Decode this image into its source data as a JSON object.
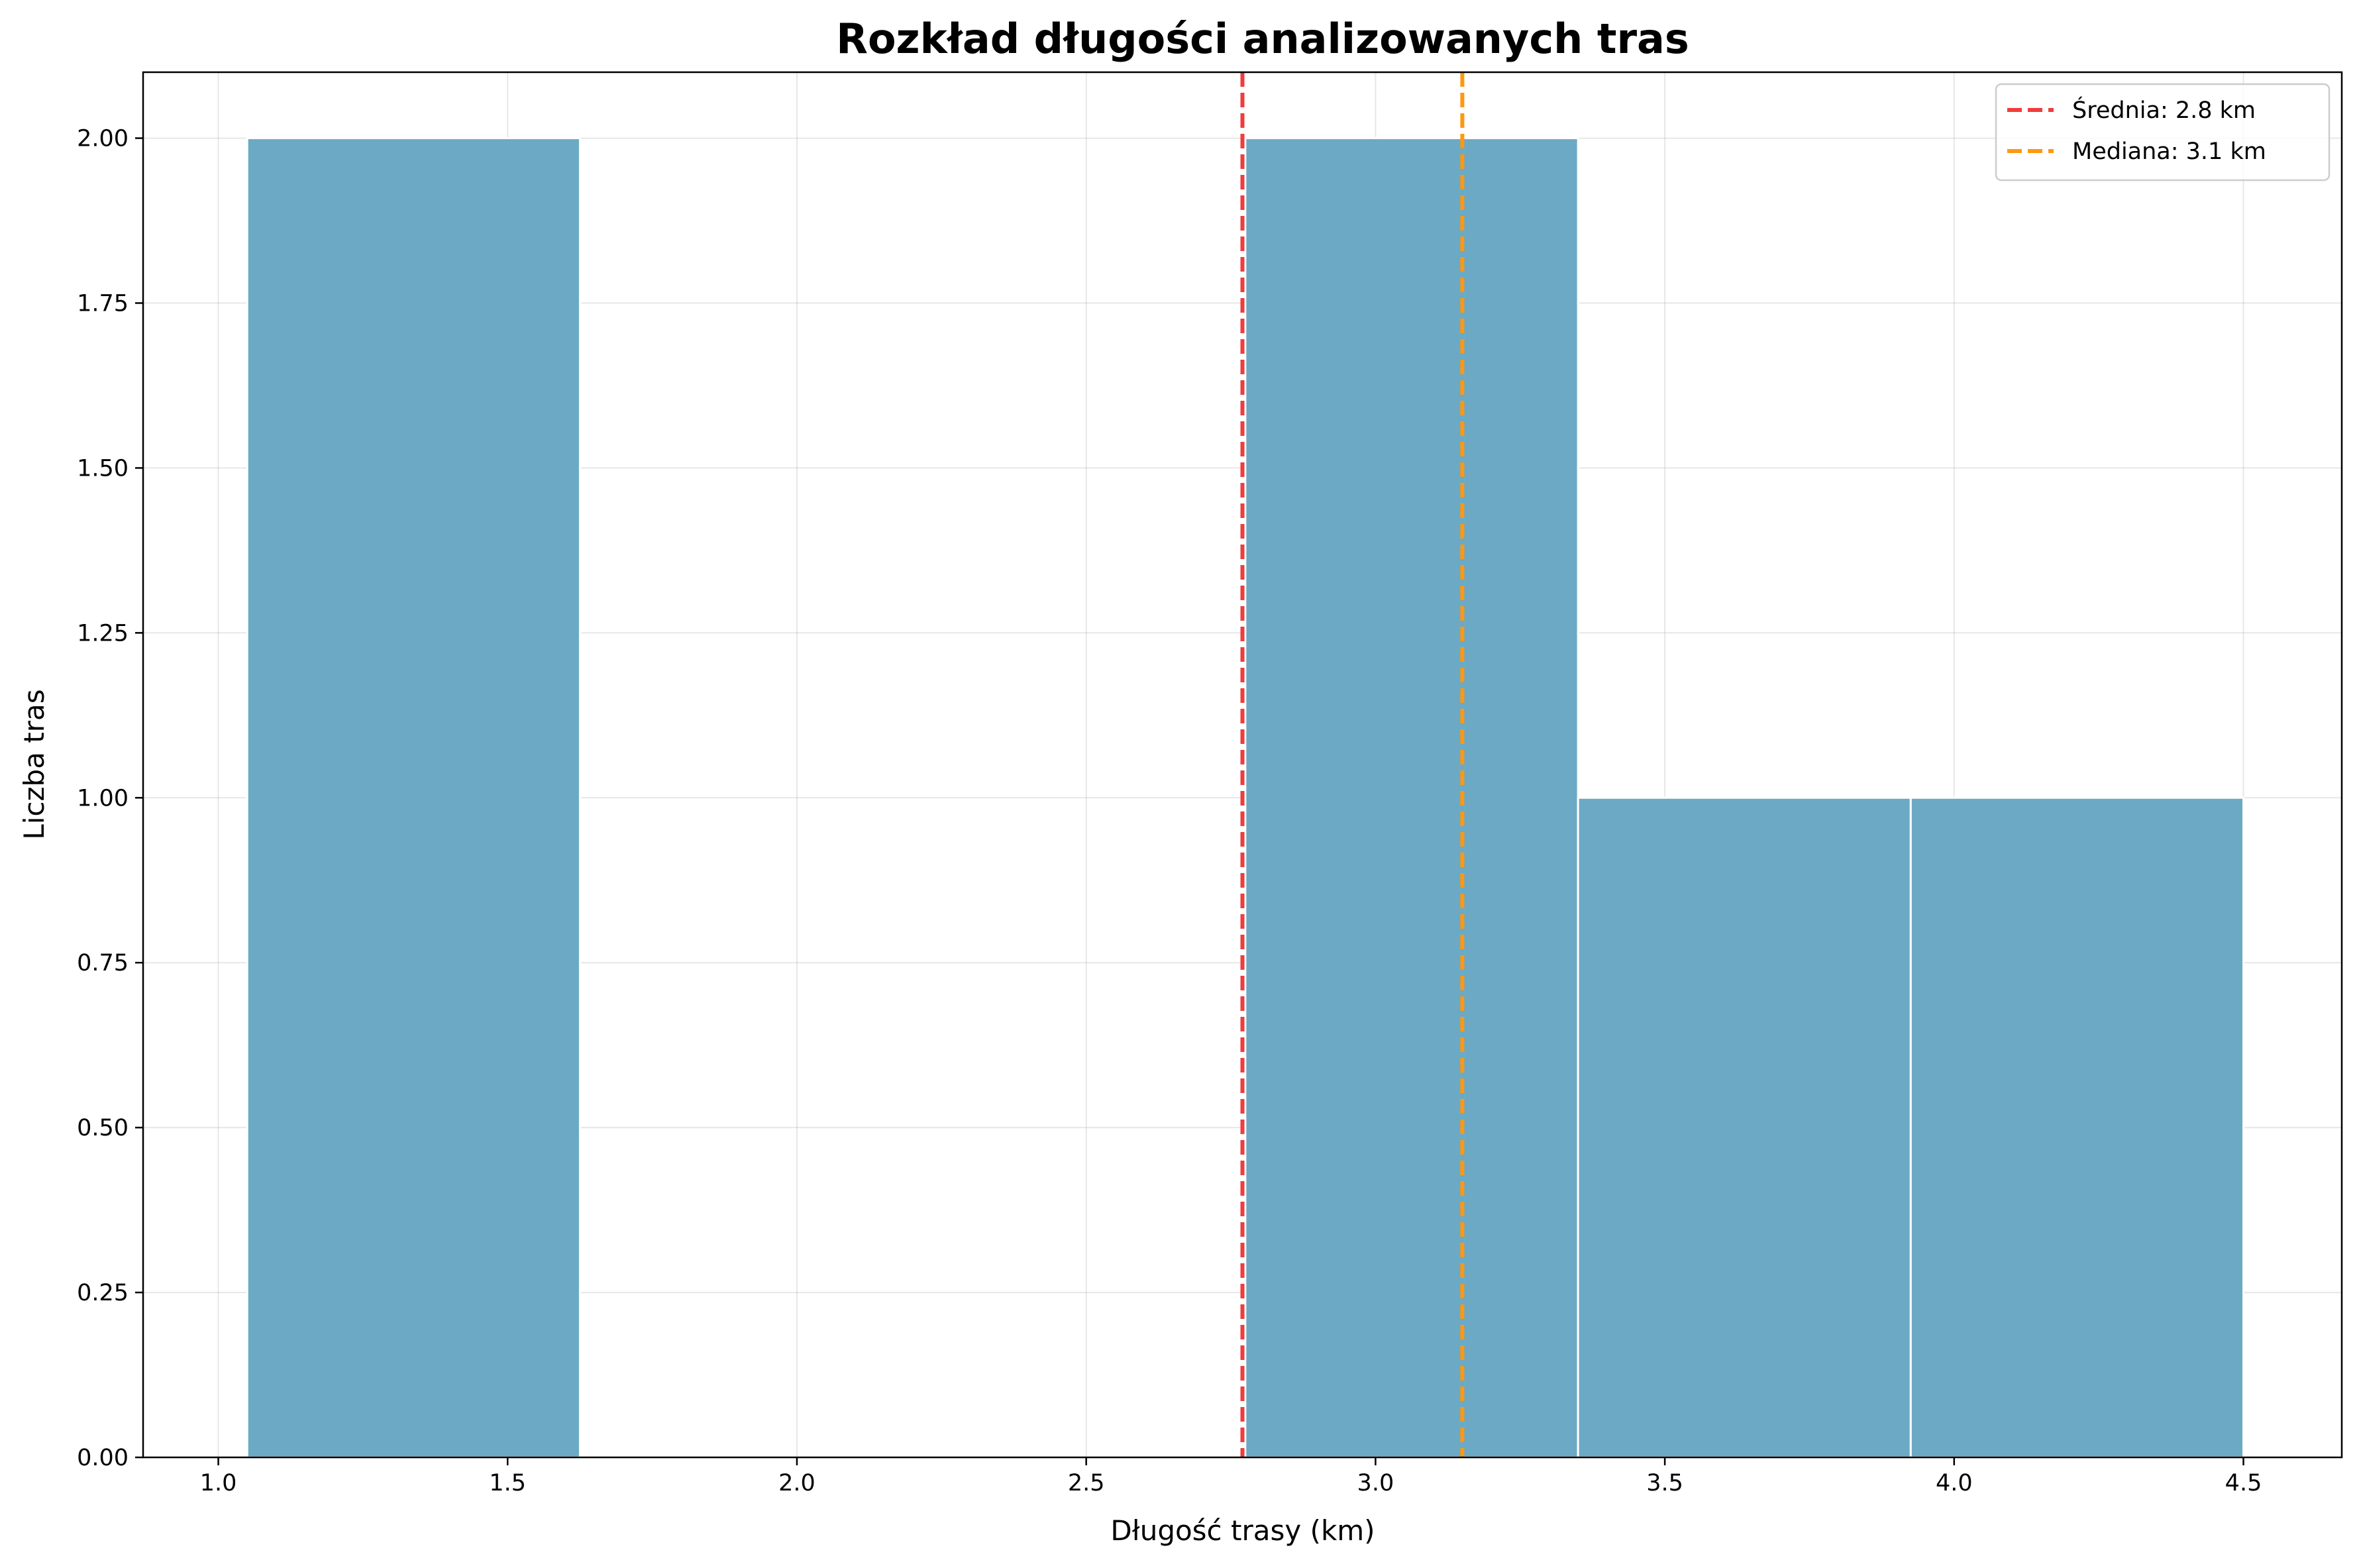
{
  "chart_data": {
    "type": "bar",
    "subtype": "histogram",
    "title": "Rozkład długości analizowanych tras",
    "xlabel": "Długość trasy (km)",
    "ylabel": "Liczba tras",
    "xlim": [
      0.87,
      4.67
    ],
    "ylim": [
      0,
      2.1
    ],
    "xticks": [
      1.0,
      1.5,
      2.0,
      2.5,
      3.0,
      3.5,
      4.0,
      4.5
    ],
    "xtick_labels": [
      "1.0",
      "1.5",
      "2.0",
      "2.5",
      "3.0",
      "3.5",
      "4.0",
      "4.5"
    ],
    "yticks": [
      0,
      0.25,
      0.5,
      0.75,
      1.0,
      1.25,
      1.5,
      1.75,
      2.0
    ],
    "ytick_labels": [
      "0.00",
      "0.25",
      "0.50",
      "0.75",
      "1.00",
      "1.25",
      "1.50",
      "1.75",
      "2.00"
    ],
    "bins": [
      {
        "x0": 1.05,
        "x1": 1.625,
        "count": 2
      },
      {
        "x0": 1.625,
        "x1": 2.2,
        "count": 0
      },
      {
        "x0": 2.2,
        "x1": 2.775,
        "count": 0
      },
      {
        "x0": 2.775,
        "x1": 3.35,
        "count": 2
      },
      {
        "x0": 3.35,
        "x1": 3.925,
        "count": 1
      },
      {
        "x0": 3.925,
        "x1": 4.5,
        "count": 1
      }
    ],
    "bar_color": "#6ca9c4",
    "vlines": [
      {
        "name": "Średnia: 2.8 km",
        "x": 2.77,
        "color": "#f03c3c",
        "style": "dashed"
      },
      {
        "name": "Mediana: 3.1 km",
        "x": 3.15,
        "color": "#ff9810",
        "style": "dashed"
      }
    ],
    "grid": true,
    "legend_position": "top-right"
  }
}
